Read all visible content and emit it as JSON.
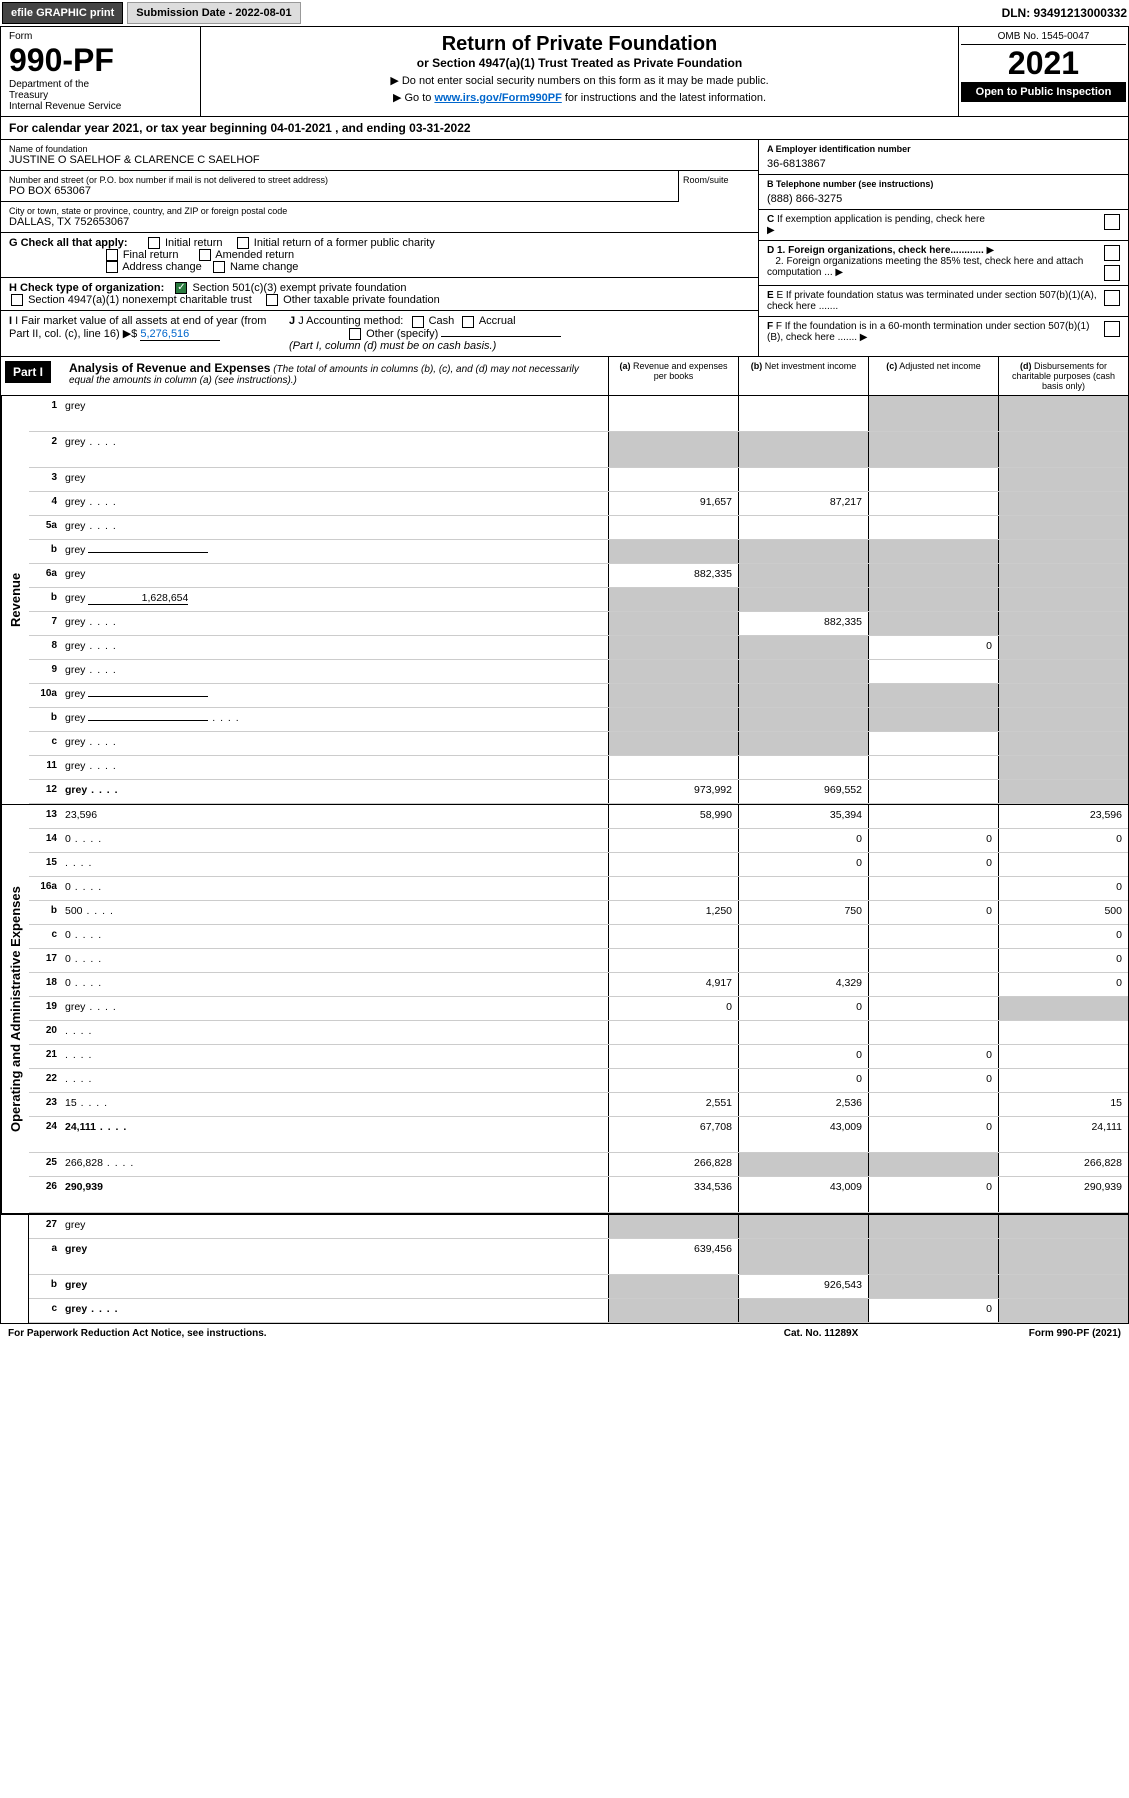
{
  "topbar": {
    "efile": "efile GRAPHIC print",
    "submission": "Submission Date - 2022-08-01",
    "dln": "DLN: 93491213000332"
  },
  "header": {
    "form_label": "Form",
    "form_number": "990-PF",
    "dept": "Department of the Treasury\nInternal Revenue Service",
    "title": "Return of Private Foundation",
    "subtitle": "or Section 4947(a)(1) Trust Treated as Private Foundation",
    "instr1": "▶ Do not enter social security numbers on this form as it may be made public.",
    "instr2_pre": "▶ Go to ",
    "instr2_link": "www.irs.gov/Form990PF",
    "instr2_post": " for instructions and the latest information.",
    "omb": "OMB No. 1545-0047",
    "year": "2021",
    "inspect": "Open to Public Inspection"
  },
  "calyear": "For calendar year 2021, or tax year beginning 04-01-2021                           , and ending 03-31-2022",
  "info": {
    "name_label": "Name of foundation",
    "name": "JUSTINE O SAELHOF & CLARENCE C SAELHOF",
    "addr_label": "Number and street (or P.O. box number if mail is not delivered to street address)",
    "addr": "PO BOX 653067",
    "room_label": "Room/suite",
    "city_label": "City or town, state or province, country, and ZIP or foreign postal code",
    "city": "DALLAS, TX  752653067",
    "a_label": "A Employer identification number",
    "a_val": "36-6813867",
    "b_label": "B Telephone number (see instructions)",
    "b_val": "(888) 866-3275",
    "c_label": "C If exemption application is pending, check here"
  },
  "checks": {
    "g_label": "G Check all that apply:",
    "g_opts": [
      "Initial return",
      "Initial return of a former public charity",
      "Final return",
      "Amended return",
      "Address change",
      "Name change"
    ],
    "h_label": "H Check type of organization:",
    "h_opt1": "Section 501(c)(3) exempt private foundation",
    "h_opt2": "Section 4947(a)(1) nonexempt charitable trust",
    "h_opt3": "Other taxable private foundation",
    "i_label": "I Fair market value of all assets at end of year (from Part II, col. (c), line 16)",
    "i_val": "5,276,516",
    "j_label": "J Accounting method:",
    "j_opts": [
      "Cash",
      "Accrual"
    ],
    "j_other": "Other (specify)",
    "j_note": "(Part I, column (d) must be on cash basis.)",
    "d1": "D 1. Foreign organizations, check here............",
    "d2": "2. Foreign organizations meeting the 85% test, check here and attach computation ...",
    "e": "E If private foundation status was terminated under section 507(b)(1)(A), check here .......",
    "f": "F If the foundation is in a 60-month termination under section 507(b)(1)(B), check here ......."
  },
  "part1": {
    "label": "Part I",
    "title": "Analysis of Revenue and Expenses",
    "note": "(The total of amounts in columns (b), (c), and (d) may not necessarily equal the amounts in column (a) (see instructions).)",
    "col_a": "(a) Revenue and expenses per books",
    "col_b": "(b) Net investment income",
    "col_c": "(c) Adjusted net income",
    "col_d": "(d) Disbursements for charitable purposes (cash basis only)"
  },
  "sections": {
    "revenue": "Revenue",
    "expenses": "Operating and Administrative Expenses"
  },
  "rows": [
    {
      "n": "1",
      "d": "grey",
      "a": "",
      "b": "",
      "c": "grey",
      "tall": true
    },
    {
      "n": "2",
      "d": "grey",
      "a": "grey",
      "b": "grey",
      "c": "grey",
      "dots": true,
      "tall": true,
      "bold_not": true
    },
    {
      "n": "3",
      "d": "grey",
      "a": "",
      "b": "",
      "c": ""
    },
    {
      "n": "4",
      "d": "grey",
      "a": "91,657",
      "b": "87,217",
      "c": "",
      "dots": true
    },
    {
      "n": "5a",
      "d": "grey",
      "a": "",
      "b": "",
      "c": "",
      "dots": true
    },
    {
      "n": "b",
      "d": "grey",
      "a": "grey",
      "b": "grey",
      "c": "grey",
      "underline": true
    },
    {
      "n": "6a",
      "d": "grey",
      "a": "882,335",
      "b": "grey",
      "c": "grey"
    },
    {
      "n": "b",
      "d": "grey",
      "a": "grey",
      "b": "grey",
      "c": "grey",
      "inline_val": "1,628,654"
    },
    {
      "n": "7",
      "d": "grey",
      "a": "grey",
      "b": "882,335",
      "c": "grey",
      "dots": true
    },
    {
      "n": "8",
      "d": "grey",
      "a": "grey",
      "b": "grey",
      "c": "0",
      "dots": true
    },
    {
      "n": "9",
      "d": "grey",
      "a": "grey",
      "b": "grey",
      "c": "",
      "dots": true
    },
    {
      "n": "10a",
      "d": "grey",
      "a": "grey",
      "b": "grey",
      "c": "grey",
      "underline": true
    },
    {
      "n": "b",
      "d": "grey",
      "a": "grey",
      "b": "grey",
      "c": "grey",
      "dots": true,
      "underline": true
    },
    {
      "n": "c",
      "d": "grey",
      "a": "grey",
      "b": "grey",
      "c": "",
      "dots": true
    },
    {
      "n": "11",
      "d": "grey",
      "a": "",
      "b": "",
      "c": "",
      "dots": true
    },
    {
      "n": "12",
      "d": "grey",
      "a": "973,992",
      "b": "969,552",
      "c": "",
      "bold": true,
      "dots": true
    }
  ],
  "exp_rows": [
    {
      "n": "13",
      "d": "23,596",
      "a": "58,990",
      "b": "35,394",
      "c": ""
    },
    {
      "n": "14",
      "d": "0",
      "a": "",
      "b": "0",
      "c": "0",
      "dots": true
    },
    {
      "n": "15",
      "d": "",
      "a": "",
      "b": "0",
      "c": "0",
      "dots": true
    },
    {
      "n": "16a",
      "d": "0",
      "a": "",
      "b": "",
      "c": "",
      "dots": true
    },
    {
      "n": "b",
      "d": "500",
      "a": "1,250",
      "b": "750",
      "c": "0",
      "dots": true
    },
    {
      "n": "c",
      "d": "0",
      "a": "",
      "b": "",
      "c": "",
      "dots": true
    },
    {
      "n": "17",
      "d": "0",
      "a": "",
      "b": "",
      "c": "",
      "dots": true
    },
    {
      "n": "18",
      "d": "0",
      "a": "4,917",
      "b": "4,329",
      "c": "",
      "dots": true
    },
    {
      "n": "19",
      "d": "grey",
      "a": "0",
      "b": "0",
      "c": "",
      "dots": true
    },
    {
      "n": "20",
      "d": "",
      "a": "",
      "b": "",
      "c": "",
      "dots": true
    },
    {
      "n": "21",
      "d": "",
      "a": "",
      "b": "0",
      "c": "0",
      "dots": true
    },
    {
      "n": "22",
      "d": "",
      "a": "",
      "b": "0",
      "c": "0",
      "dots": true
    },
    {
      "n": "23",
      "d": "15",
      "a": "2,551",
      "b": "2,536",
      "c": "",
      "dots": true
    },
    {
      "n": "24",
      "d": "24,111",
      "a": "67,708",
      "b": "43,009",
      "c": "0",
      "bold": true,
      "dots": true,
      "tall": true
    },
    {
      "n": "25",
      "d": "266,828",
      "a": "266,828",
      "b": "grey",
      "c": "grey",
      "dots": true
    },
    {
      "n": "26",
      "d": "290,939",
      "a": "334,536",
      "b": "43,009",
      "c": "0",
      "bold": true,
      "tall": true
    }
  ],
  "final_rows": [
    {
      "n": "27",
      "d": "grey",
      "a": "grey",
      "b": "grey",
      "c": "grey"
    },
    {
      "n": "a",
      "d": "grey",
      "a": "639,456",
      "b": "grey",
      "c": "grey",
      "bold": true,
      "tall": true
    },
    {
      "n": "b",
      "d": "grey",
      "a": "grey",
      "b": "926,543",
      "c": "grey",
      "bold": true
    },
    {
      "n": "c",
      "d": "grey",
      "a": "grey",
      "b": "grey",
      "c": "0",
      "bold": true,
      "dots": true
    }
  ],
  "footer": {
    "left": "For Paperwork Reduction Act Notice, see instructions.",
    "mid": "Cat. No. 11289X",
    "right": "Form 990-PF (2021)"
  }
}
